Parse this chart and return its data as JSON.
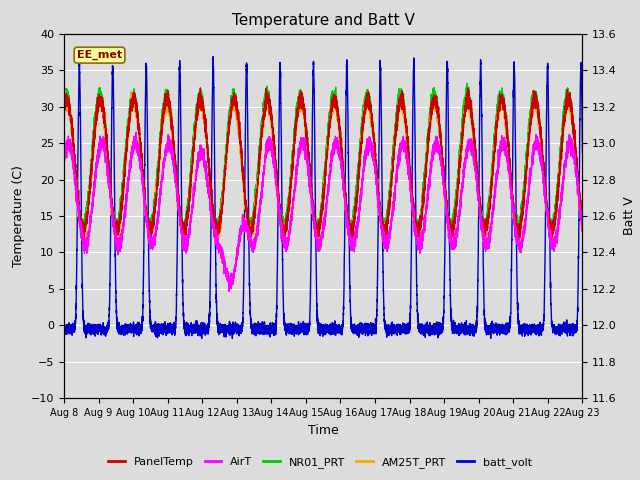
{
  "title": "Temperature and Batt V",
  "xlabel": "Time",
  "ylabel_left": "Temperature (C)",
  "ylabel_right": "Batt V",
  "annotation": "EE_met",
  "annotation_color": "#8B0000",
  "annotation_bg": "#FFFF99",
  "annotation_border": "#8B6914",
  "left_ylim": [
    -10,
    40
  ],
  "right_ylim": [
    11.6,
    13.6
  ],
  "plot_bg": "#DCDCDC",
  "fig_bg": "#DCDCDC",
  "grid_color": "#FFFFFF",
  "series": {
    "PanelTemp": {
      "color": "#CC0000",
      "lw": 1.0
    },
    "AirT": {
      "color": "#FF00FF",
      "lw": 1.0
    },
    "NR01_PRT": {
      "color": "#00CC00",
      "lw": 1.0
    },
    "AM25T_PRT": {
      "color": "#FFA500",
      "lw": 1.0
    },
    "batt_volt": {
      "color": "#0000CC",
      "lw": 1.0
    }
  },
  "n_days": 15.5,
  "n_points": 7440,
  "xtick_labels": [
    "Aug 8",
    "Aug 9",
    "Aug 10",
    "Aug 11",
    "Aug 12",
    "Aug 13",
    "Aug 14",
    "Aug 15",
    "Aug 16",
    "Aug 17",
    "Aug 18",
    "Aug 19",
    "Aug 20",
    "Aug 21",
    "Aug 22",
    "Aug 23"
  ],
  "yticks_left": [
    -10,
    -5,
    0,
    5,
    10,
    15,
    20,
    25,
    30,
    35,
    40
  ],
  "yticks_right": [
    11.6,
    11.8,
    12.0,
    12.2,
    12.4,
    12.6,
    12.8,
    13.0,
    13.2,
    13.4,
    13.6
  ],
  "legend_labels": [
    "PanelTemp",
    "AirT",
    "NR01_PRT",
    "AM25T_PRT",
    "batt_volt"
  ],
  "legend_colors": [
    "#CC0000",
    "#FF00FF",
    "#00CC00",
    "#FFA500",
    "#0000CC"
  ]
}
